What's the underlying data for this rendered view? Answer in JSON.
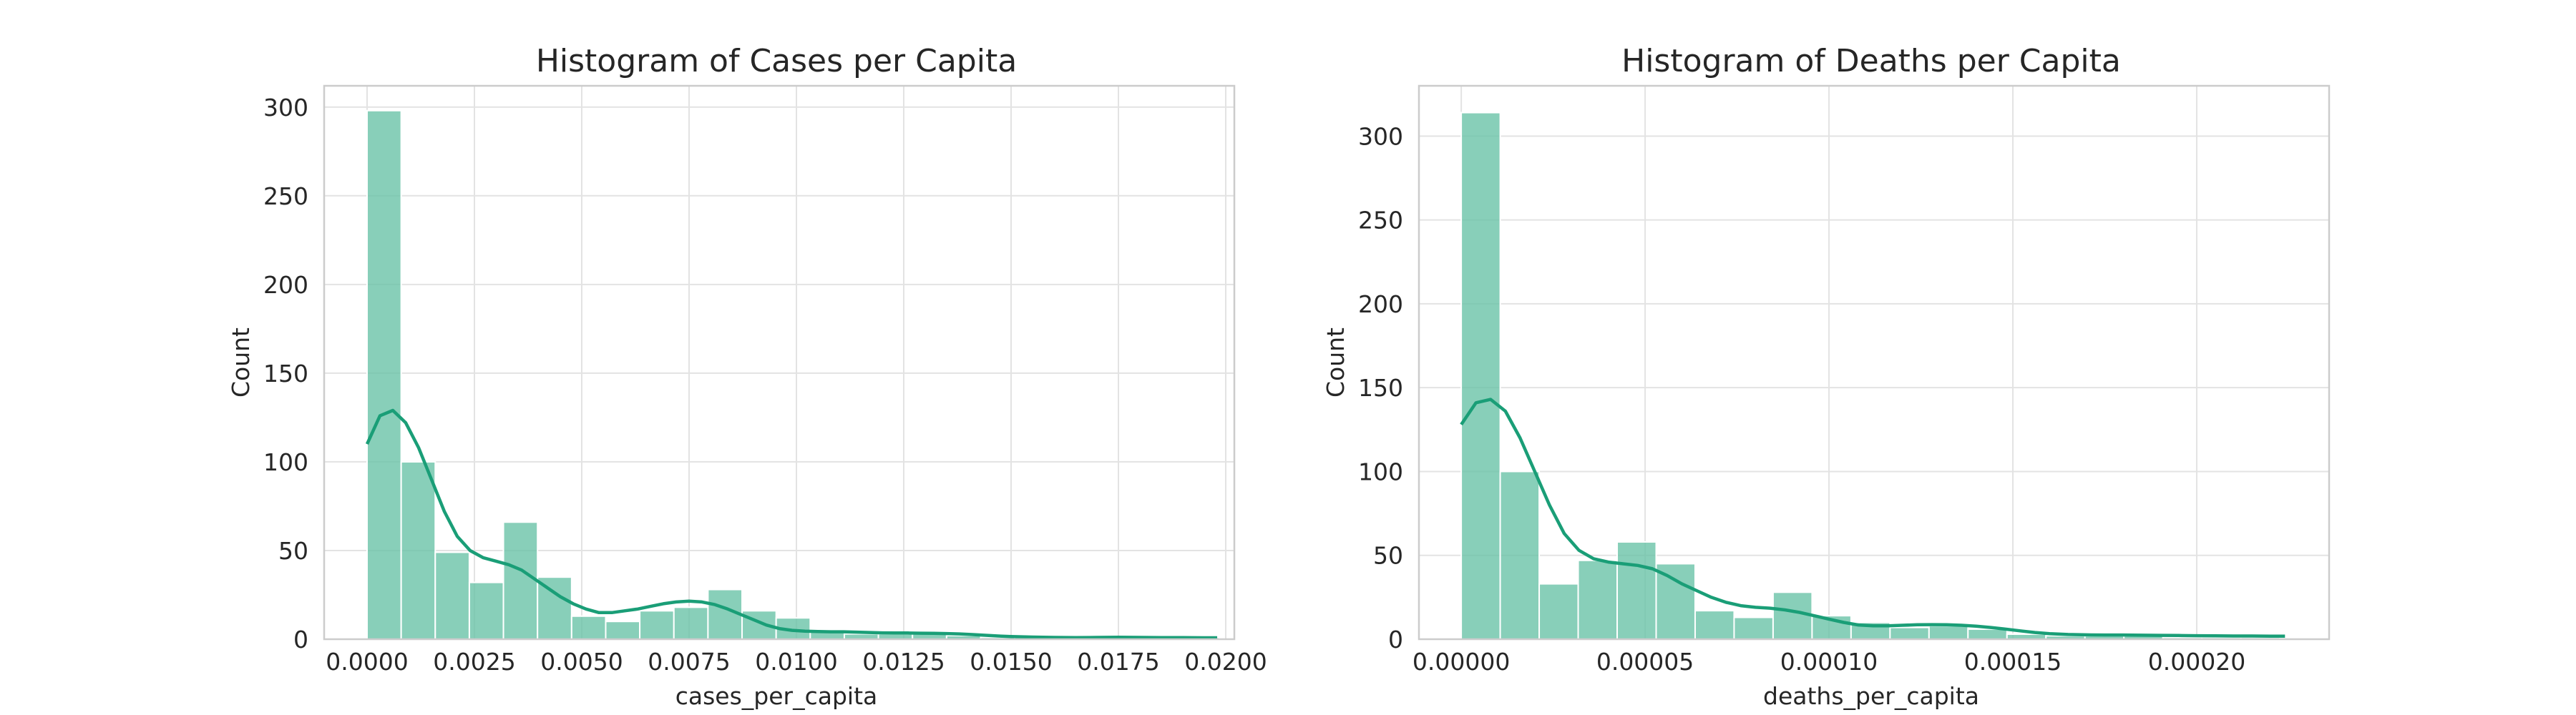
{
  "chart_data": [
    {
      "type": "bar",
      "title": "Histogram of Cases per Capita",
      "xlabel": "cases_per_capita",
      "ylabel": "Count",
      "xlim": [
        -0.001,
        0.0202
      ],
      "ylim": [
        0,
        312
      ],
      "xticks": [
        0.0,
        0.0025,
        0.005,
        0.0075,
        0.01,
        0.0125,
        0.015,
        0.0175,
        0.02
      ],
      "xtick_labels": [
        "0.0000",
        "0.0025",
        "0.0050",
        "0.0075",
        "0.0100",
        "0.0125",
        "0.0150",
        "0.0175",
        "0.0200"
      ],
      "yticks": [
        0,
        50,
        100,
        150,
        200,
        250,
        300
      ],
      "ytick_labels": [
        "0",
        "50",
        "100",
        "150",
        "200",
        "250",
        "300"
      ],
      "grid": true,
      "bin_start": 0.0,
      "bin_width": 0.000794,
      "values": [
        298,
        100,
        49,
        32,
        66,
        35,
        13,
        10,
        16,
        18,
        28,
        16,
        12,
        5,
        3,
        3,
        3,
        2,
        1,
        1,
        0,
        0,
        0,
        0,
        1
      ],
      "kde": {
        "x": [
          0.0,
          0.0003,
          0.0006,
          0.0009,
          0.0012,
          0.0015,
          0.0018,
          0.0021,
          0.0024,
          0.0027,
          0.003,
          0.0033,
          0.0036,
          0.0039,
          0.0042,
          0.0045,
          0.0048,
          0.0051,
          0.0054,
          0.0057,
          0.006,
          0.0063,
          0.0066,
          0.0069,
          0.0072,
          0.0075,
          0.0078,
          0.0081,
          0.0084,
          0.0087,
          0.009,
          0.0093,
          0.0096,
          0.0099,
          0.0102,
          0.0105,
          0.0108,
          0.0111,
          0.0114,
          0.0117,
          0.012,
          0.0123,
          0.0126,
          0.0129,
          0.0132,
          0.0135,
          0.0138,
          0.0141,
          0.0144,
          0.0147,
          0.015,
          0.0155,
          0.016,
          0.0165,
          0.017,
          0.0175,
          0.018,
          0.0185,
          0.019,
          0.0195,
          0.0198
        ],
        "y": [
          110,
          126,
          129,
          122,
          108,
          90,
          72,
          58,
          50,
          46,
          44,
          42,
          39,
          34,
          29,
          24,
          20,
          17,
          15,
          15,
          16,
          17,
          18.5,
          20,
          21,
          21.5,
          21,
          19.5,
          17,
          14,
          11,
          8,
          6,
          5,
          4.5,
          4.3,
          4.2,
          4.2,
          4.0,
          3.8,
          3.6,
          3.5,
          3.5,
          3.4,
          3.3,
          3.2,
          3.0,
          2.6,
          2.2,
          1.8,
          1.5,
          1.2,
          1.0,
          0.9,
          1.0,
          1.1,
          1.0,
          0.9,
          0.9,
          0.8,
          0.8
        ]
      }
    },
    {
      "type": "bar",
      "title": "Histogram of Deaths per Capita",
      "xlabel": "deaths_per_capita",
      "ylabel": "Count",
      "xlim": [
        -1.15e-05,
        0.000236
      ],
      "ylim": [
        0,
        330
      ],
      "xticks": [
        0.0,
        5e-05,
        0.0001,
        0.00015,
        0.0002
      ],
      "xtick_labels": [
        "0.00000",
        "0.00005",
        "0.00010",
        "0.00015",
        "0.00020"
      ],
      "yticks": [
        0,
        50,
        100,
        150,
        200,
        250,
        300
      ],
      "ytick_labels": [
        "0",
        "50",
        "100",
        "150",
        "200",
        "250",
        "300"
      ],
      "grid": true,
      "bin_start": 0.0,
      "bin_width": 1.06e-05,
      "values": [
        314,
        100,
        33,
        47,
        58,
        45,
        17,
        13,
        28,
        14,
        10,
        7,
        8,
        6,
        3,
        2,
        2,
        2,
        1,
        1,
        1
      ],
      "kde": {
        "x": [
          0.0,
          4e-06,
          8e-06,
          1.2e-05,
          1.6e-05,
          2e-05,
          2.4e-05,
          2.8e-05,
          3.2e-05,
          3.6e-05,
          4e-05,
          4.4e-05,
          4.8e-05,
          5.2e-05,
          5.6e-05,
          6e-05,
          6.4e-05,
          6.8e-05,
          7.2e-05,
          7.6e-05,
          8e-05,
          8.4e-05,
          8.8e-05,
          9.2e-05,
          9.6e-05,
          0.0001,
          0.000104,
          0.000108,
          0.000112,
          0.000116,
          0.00012,
          0.000124,
          0.000128,
          0.000132,
          0.000136,
          0.00014,
          0.000144,
          0.000148,
          0.000152,
          0.000156,
          0.00016,
          0.000165,
          0.00017,
          0.000175,
          0.00018,
          0.000185,
          0.00019,
          0.000195,
          0.0002,
          0.000205,
          0.00021,
          0.000215,
          0.00022,
          0.000224
        ],
        "y": [
          128,
          141,
          143,
          136,
          120,
          100,
          80,
          63,
          53,
          48,
          46,
          45,
          44,
          42,
          38,
          33,
          29,
          25,
          22,
          20,
          19,
          18.5,
          17.5,
          16,
          14,
          12,
          10,
          8.5,
          8,
          8,
          8.3,
          8.6,
          8.7,
          8.6,
          8.3,
          7.8,
          7.0,
          6.0,
          5.0,
          4.0,
          3.3,
          2.8,
          2.6,
          2.5,
          2.5,
          2.4,
          2.3,
          2.2,
          2.1,
          2.0,
          1.9,
          1.9,
          1.8,
          1.8
        ]
      }
    }
  ]
}
